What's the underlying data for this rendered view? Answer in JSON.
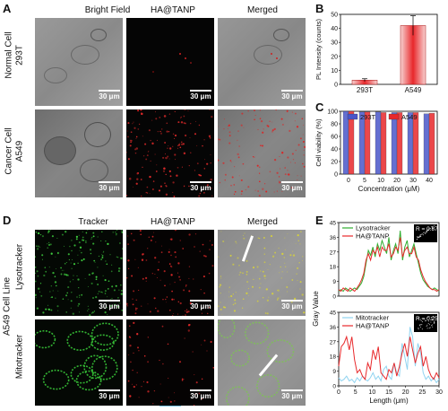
{
  "panels": {
    "A": {
      "label": "A",
      "columns": [
        "Bright Field",
        "HA@TANP",
        "Merged"
      ],
      "group_labels": [
        "Normal Cell",
        "Cancer Cell"
      ],
      "row_labels": [
        "293T",
        "A549"
      ],
      "scale_bar": "30 μm"
    },
    "B": {
      "label": "B"
    },
    "C": {
      "label": "C"
    },
    "D": {
      "label": "D",
      "columns": [
        "Tracker",
        "HA@TANP",
        "Merged"
      ],
      "group_label": "A549 Cell Line",
      "row_labels": [
        "Lysotracker",
        "Mitotracker"
      ],
      "scale_bar": "30 μm"
    },
    "E": {
      "label": "E"
    }
  },
  "colors": {
    "red": "#e8282b",
    "blue": "#4a56c9",
    "green": "#2fae2f",
    "cyan": "#8fd3f0"
  },
  "chart_data": [
    {
      "type": "bar",
      "panel": "B",
      "categories": [
        "293T",
        "A549"
      ],
      "values": [
        3,
        42
      ],
      "errors": [
        1,
        7
      ],
      "ylabel": "PL Intensity (counts)",
      "ylim": [
        0,
        50
      ],
      "yticks": [
        0,
        10,
        20,
        30,
        40,
        50
      ]
    },
    {
      "type": "bar",
      "panel": "C",
      "categories": [
        "0",
        "5",
        "10",
        "20",
        "30",
        "40"
      ],
      "series": [
        {
          "name": "293T",
          "values": [
            100,
            99,
            99,
            98,
            98,
            96
          ]
        },
        {
          "name": "A549",
          "values": [
            100,
            99,
            98,
            98,
            98,
            97
          ]
        }
      ],
      "xlabel": "Concentration (μM)",
      "ylabel": "Cell viability (%)",
      "ylim": [
        0,
        100
      ],
      "yticks": [
        0,
        20,
        40,
        60,
        80,
        100
      ],
      "legend": "top"
    },
    {
      "type": "line",
      "panel": "E",
      "subplots": [
        {
          "series": [
            {
              "name": "Lysotracker",
              "values": [
                3,
                4,
                3,
                5,
                4,
                3,
                4,
                5,
                4,
                6,
                8,
                12,
                20,
                28,
                25,
                30,
                24,
                32,
                28,
                34,
                30,
                26,
                36,
                22,
                28,
                32,
                26,
                40,
                22,
                30,
                34,
                24,
                28,
                32,
                26,
                20,
                14,
                10,
                8,
                6,
                5,
                4,
                5,
                4,
                3
              ]
            },
            {
              "name": "HA@TANP",
              "values": [
                4,
                3,
                5,
                4,
                3,
                5,
                4,
                3,
                5,
                7,
                10,
                14,
                22,
                26,
                22,
                28,
                26,
                30,
                24,
                30,
                28,
                28,
                32,
                24,
                26,
                30,
                28,
                36,
                24,
                28,
                30,
                26,
                26,
                30,
                24,
                22,
                16,
                12,
                9,
                7,
                5,
                4,
                4,
                3,
                4
              ]
            }
          ],
          "inset": "R = 0.87",
          "ylim": [
            0,
            45
          ],
          "yticks": [
            0,
            9,
            18,
            27,
            36,
            45
          ]
        },
        {
          "series": [
            {
              "name": "Mitotracker",
              "values": [
                5,
                3,
                4,
                6,
                3,
                4,
                2,
                5,
                3,
                6,
                4,
                3,
                5,
                8,
                4,
                6,
                3,
                10,
                12,
                6,
                4,
                14,
                8,
                6,
                26,
                18,
                10,
                36,
                30,
                12,
                26,
                20,
                8,
                4,
                6,
                3,
                5,
                2,
                4
              ]
            },
            {
              "name": "HA@TANP",
              "values": [
                12,
                24,
                26,
                30,
                22,
                30,
                16,
                8,
                10,
                6,
                4,
                14,
                10,
                22,
                16,
                24,
                8,
                6,
                4,
                10,
                8,
                14,
                6,
                12,
                20,
                26,
                18,
                30,
                22,
                14,
                20,
                24,
                12,
                18,
                10,
                6,
                4,
                8,
                5
              ]
            }
          ],
          "inset": "R = 0.25",
          "ylim": [
            0,
            45
          ],
          "yticks": [
            0,
            9,
            18,
            27,
            36,
            45
          ]
        }
      ],
      "xlabel": "Length (μm)",
      "ylabel": "Gray Value",
      "xlim": [
        0,
        30
      ],
      "xticks": [
        0,
        5,
        10,
        15,
        20,
        25,
        30
      ]
    }
  ]
}
